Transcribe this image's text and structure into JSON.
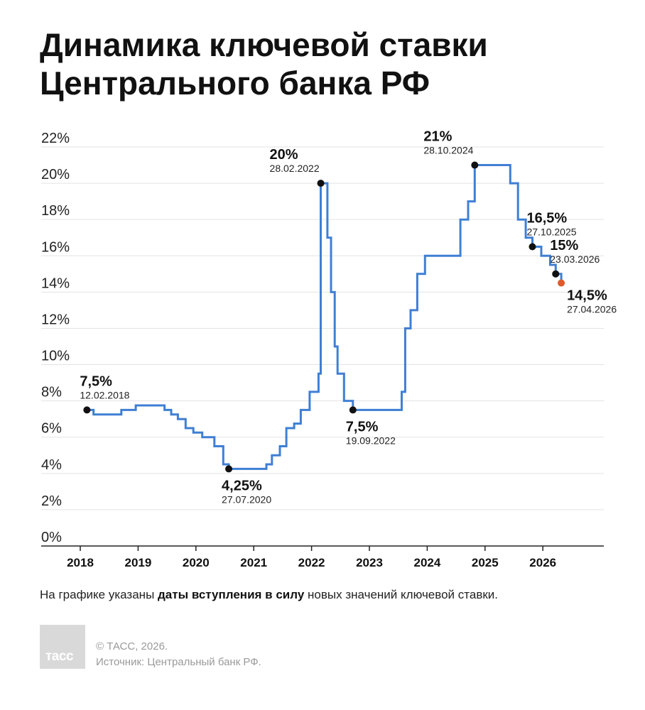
{
  "title_lines": [
    "Динамика ключевой ставки",
    "Центрального банка РФ"
  ],
  "note": {
    "prefix": "На графике указаны ",
    "bold": "даты вступления в силу",
    "suffix": " новых значений ключевой ставки."
  },
  "logo_text": "тасс",
  "credits": [
    "© ТАСС, 2026.",
    "Источник: Центральный банк РФ."
  ],
  "colors": {
    "line": "#3f7fd4",
    "marker": "#111111",
    "marker_latest": "#e05a2b",
    "grid": "#e3e3e3",
    "axis": "#222222"
  },
  "chart_data": {
    "type": "line",
    "step": true,
    "title": "Динамика ключевой ставки Центрального банка РФ",
    "xlabel": "",
    "ylabel": "",
    "xlim": [
      2018,
      2027
    ],
    "ylim": [
      0,
      22
    ],
    "grid": true,
    "x_ticks": [
      "2018",
      "2019",
      "2020",
      "2021",
      "2022",
      "2023",
      "2024",
      "2025",
      "2026"
    ],
    "y_ticks": [
      "0%",
      "2%",
      "4%",
      "6%",
      "8%",
      "10%",
      "12%",
      "14%",
      "16%",
      "18%",
      "20%",
      "22%"
    ],
    "series": [
      {
        "name": "",
        "points": [
          {
            "date": "2018-02-12",
            "value": 7.5
          },
          {
            "date": "2018-03-26",
            "value": 7.25
          },
          {
            "date": "2018-09-17",
            "value": 7.5
          },
          {
            "date": "2018-12-17",
            "value": 7.75
          },
          {
            "date": "2019-06-17",
            "value": 7.5
          },
          {
            "date": "2019-07-29",
            "value": 7.25
          },
          {
            "date": "2019-09-09",
            "value": 7.0
          },
          {
            "date": "2019-10-28",
            "value": 6.5
          },
          {
            "date": "2019-12-16",
            "value": 6.25
          },
          {
            "date": "2020-02-10",
            "value": 6.0
          },
          {
            "date": "2020-04-27",
            "value": 5.5
          },
          {
            "date": "2020-06-22",
            "value": 4.5
          },
          {
            "date": "2020-07-27",
            "value": 4.25
          },
          {
            "date": "2021-03-22",
            "value": 4.5
          },
          {
            "date": "2021-04-26",
            "value": 5.0
          },
          {
            "date": "2021-06-15",
            "value": 5.5
          },
          {
            "date": "2021-07-26",
            "value": 6.5
          },
          {
            "date": "2021-09-13",
            "value": 6.75
          },
          {
            "date": "2021-10-25",
            "value": 7.5
          },
          {
            "date": "2021-12-20",
            "value": 8.5
          },
          {
            "date": "2022-02-14",
            "value": 9.5
          },
          {
            "date": "2022-02-28",
            "value": 20.0
          },
          {
            "date": "2022-04-11",
            "value": 17.0
          },
          {
            "date": "2022-05-04",
            "value": 14.0
          },
          {
            "date": "2022-05-27",
            "value": 11.0
          },
          {
            "date": "2022-06-14",
            "value": 9.5
          },
          {
            "date": "2022-07-25",
            "value": 8.0
          },
          {
            "date": "2022-09-19",
            "value": 7.5
          },
          {
            "date": "2023-07-24",
            "value": 8.5
          },
          {
            "date": "2023-08-15",
            "value": 12.0
          },
          {
            "date": "2023-09-18",
            "value": 13.0
          },
          {
            "date": "2023-10-30",
            "value": 15.0
          },
          {
            "date": "2023-12-18",
            "value": 16.0
          },
          {
            "date": "2024-07-29",
            "value": 18.0
          },
          {
            "date": "2024-09-16",
            "value": 19.0
          },
          {
            "date": "2024-10-28",
            "value": 21.0
          },
          {
            "date": "2025-06-09",
            "value": 20.0
          },
          {
            "date": "2025-07-28",
            "value": 18.0
          },
          {
            "date": "2025-09-15",
            "value": 17.0
          },
          {
            "date": "2025-10-27",
            "value": 16.5
          },
          {
            "date": "2025-12-22",
            "value": 16.0
          },
          {
            "date": "2026-02-16",
            "value": 15.5
          },
          {
            "date": "2026-03-23",
            "value": 15.0
          },
          {
            "date": "2026-04-27",
            "value": 14.5
          }
        ]
      }
    ],
    "annotations": [
      {
        "id": "ann-2018",
        "date": "2018-02-12",
        "value": 7.5,
        "label": "7,5%",
        "date_label": "12.02.2018",
        "pos": "above"
      },
      {
        "id": "ann-2020",
        "date": "2020-07-27",
        "value": 4.25,
        "label": "4,25%",
        "date_label": "27.07.2020",
        "pos": "below"
      },
      {
        "id": "ann-2022-peak",
        "date": "2022-02-28",
        "value": 20.0,
        "label": "20%",
        "date_label": "28.02.2022",
        "pos": "above-left"
      },
      {
        "id": "ann-2022-low",
        "date": "2022-09-19",
        "value": 7.5,
        "label": "7,5%",
        "date_label": "19.09.2022",
        "pos": "below"
      },
      {
        "id": "ann-2024",
        "date": "2024-10-28",
        "value": 21.0,
        "label": "21%",
        "date_label": "28.10.2024",
        "pos": "above-left"
      },
      {
        "id": "ann-2025",
        "date": "2025-10-27",
        "value": 16.5,
        "label": "16,5%",
        "date_label": "27.10.2025",
        "pos": "above-right"
      },
      {
        "id": "ann-2026-03",
        "date": "2026-03-23",
        "value": 15.0,
        "label": "15%",
        "date_label": "23.03.2026",
        "pos": "above-right"
      },
      {
        "id": "ann-2026-04",
        "date": "2026-04-27",
        "value": 14.5,
        "label": "14,5%",
        "date_label": "27.04.2026",
        "pos": "below-right",
        "latest": true
      }
    ]
  }
}
